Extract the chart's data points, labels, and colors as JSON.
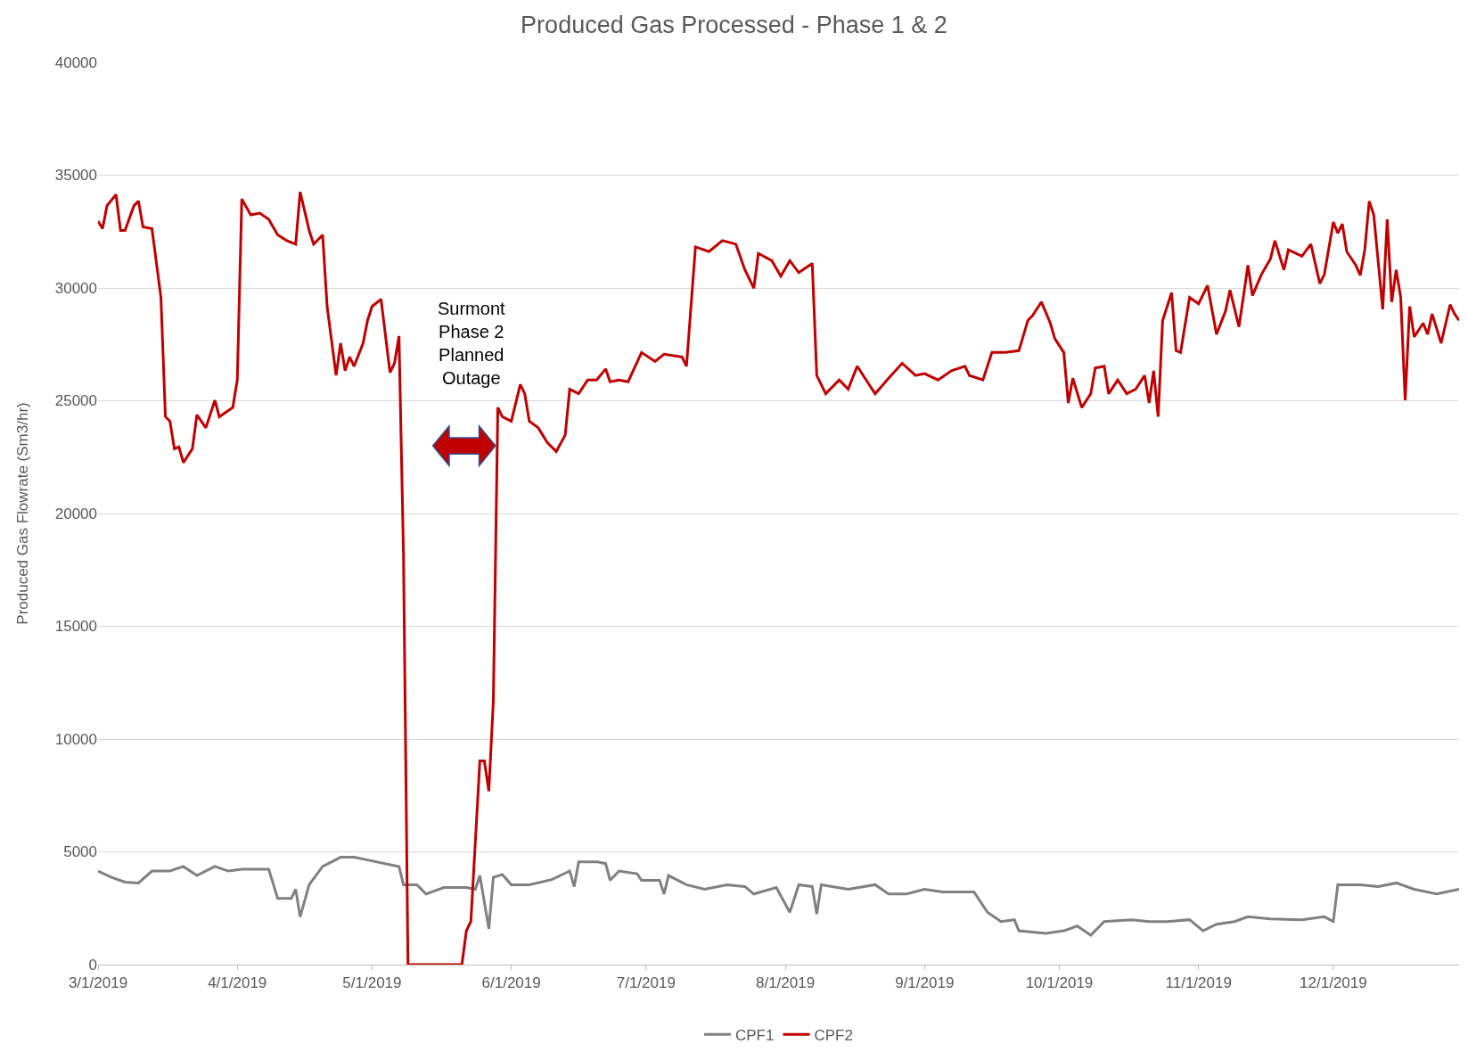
{
  "chart_data": {
    "type": "line",
    "title": "Produced Gas Processed - Phase 1 & 2",
    "ylabel": "Produced Gas Flowrate (Sm3/hr)",
    "series": [
      {
        "name": "CPF1",
        "color": "#808080",
        "x": [
          "2019-03-01",
          "2019-03-04",
          "2019-03-07",
          "2019-03-10",
          "2019-03-13",
          "2019-03-17",
          "2019-03-20",
          "2019-03-23",
          "2019-03-27",
          "2019-03-30",
          "2019-04-02",
          "2019-04-08",
          "2019-04-10",
          "2019-04-13",
          "2019-04-14",
          "2019-04-15",
          "2019-04-17",
          "2019-04-20",
          "2019-04-24",
          "2019-04-27",
          "2019-04-30",
          "2019-05-07",
          "2019-05-08",
          "2019-05-11",
          "2019-05-13",
          "2019-05-17",
          "2019-05-22",
          "2019-05-24",
          "2019-05-25",
          "2019-05-27",
          "2019-05-28",
          "2019-05-30",
          "2019-05-31",
          "2019-06-01",
          "2019-06-05",
          "2019-06-10",
          "2019-06-14",
          "2019-06-15",
          "2019-06-16",
          "2019-06-20",
          "2019-06-22",
          "2019-06-23",
          "2019-06-25",
          "2019-06-29",
          "2019-06-30",
          "2019-07-04",
          "2019-07-05",
          "2019-07-06",
          "2019-07-10",
          "2019-07-14",
          "2019-07-19",
          "2019-07-23",
          "2019-07-25",
          "2019-07-30",
          "2019-08-02",
          "2019-08-04",
          "2019-08-07",
          "2019-08-08",
          "2019-08-09",
          "2019-08-15",
          "2019-08-21",
          "2019-08-24",
          "2019-08-28",
          "2019-09-01",
          "2019-09-05",
          "2019-09-12",
          "2019-09-15",
          "2019-09-18",
          "2019-09-21",
          "2019-09-22",
          "2019-09-28",
          "2019-10-02",
          "2019-10-05",
          "2019-10-08",
          "2019-10-11",
          "2019-10-17",
          "2019-10-21",
          "2019-10-25",
          "2019-10-30",
          "2019-11-02",
          "2019-11-05",
          "2019-11-09",
          "2019-11-12",
          "2019-11-17",
          "2019-11-24",
          "2019-11-29",
          "2019-12-01",
          "2019-12-02",
          "2019-12-07",
          "2019-12-11",
          "2019-12-15",
          "2019-12-19",
          "2019-12-24",
          "2019-12-29"
        ],
        "values": [
          4150,
          3870,
          3660,
          3620,
          4150,
          4150,
          4350,
          3950,
          4350,
          4150,
          4230,
          4230,
          2930,
          2930,
          3340,
          2120,
          3540,
          4350,
          4760,
          4760,
          4640,
          4350,
          3540,
          3540,
          3130,
          3420,
          3420,
          3340,
          3950,
          1590,
          3870,
          3990,
          3770,
          3540,
          3540,
          3770,
          4150,
          3460,
          4560,
          4560,
          4480,
          3740,
          4150,
          4030,
          3740,
          3740,
          3130,
          3950,
          3540,
          3340,
          3540,
          3460,
          3130,
          3420,
          2320,
          3540,
          3460,
          2240,
          3540,
          3340,
          3540,
          3130,
          3130,
          3340,
          3220,
          3220,
          2320,
          1910,
          1990,
          1500,
          1380,
          1500,
          1710,
          1300,
          1910,
          1990,
          1910,
          1910,
          1990,
          1500,
          1790,
          1910,
          2120,
          2030,
          1990,
          2120,
          1910,
          3540,
          3540,
          3460,
          3620,
          3340,
          3130,
          3340
        ]
      },
      {
        "name": "CPF2",
        "color": "#c00000",
        "x": [
          "2019-03-01",
          "2019-03-02",
          "2019-03-03",
          "2019-03-05",
          "2019-03-06",
          "2019-03-07",
          "2019-03-09",
          "2019-03-10",
          "2019-03-11",
          "2019-03-13",
          "2019-03-15",
          "2019-03-16",
          "2019-03-17",
          "2019-03-18",
          "2019-03-19",
          "2019-03-20",
          "2019-03-22",
          "2019-03-23",
          "2019-03-25",
          "2019-03-27",
          "2019-03-28",
          "2019-03-31",
          "2019-04-01",
          "2019-04-02",
          "2019-04-04",
          "2019-04-06",
          "2019-04-08",
          "2019-04-10",
          "2019-04-12",
          "2019-04-14",
          "2019-04-15",
          "2019-04-17",
          "2019-04-18",
          "2019-04-20",
          "2019-04-21",
          "2019-04-23",
          "2019-04-24",
          "2019-04-25",
          "2019-04-26",
          "2019-04-27",
          "2019-04-29",
          "2019-04-30",
          "2019-05-01",
          "2019-05-03",
          "2019-05-05",
          "2019-05-06",
          "2019-05-07",
          "2019-05-08",
          "2019-05-09",
          "2019-05-21",
          "2019-05-22",
          "2019-05-23",
          "2019-05-25",
          "2019-05-26",
          "2019-05-27",
          "2019-05-28",
          "2019-05-29",
          "2019-05-30",
          "2019-06-01",
          "2019-06-03",
          "2019-06-04",
          "2019-06-05",
          "2019-06-07",
          "2019-06-09",
          "2019-06-11",
          "2019-06-13",
          "2019-06-14",
          "2019-06-16",
          "2019-06-18",
          "2019-06-20",
          "2019-06-22",
          "2019-06-23",
          "2019-06-25",
          "2019-06-27",
          "2019-06-30",
          "2019-07-03",
          "2019-07-05",
          "2019-07-09",
          "2019-07-10",
          "2019-07-12",
          "2019-07-15",
          "2019-07-18",
          "2019-07-21",
          "2019-07-23",
          "2019-07-25",
          "2019-07-26",
          "2019-07-29",
          "2019-07-31",
          "2019-08-02",
          "2019-08-04",
          "2019-08-07",
          "2019-08-08",
          "2019-08-10",
          "2019-08-13",
          "2019-08-15",
          "2019-08-17",
          "2019-08-19",
          "2019-08-21",
          "2019-08-24",
          "2019-08-27",
          "2019-08-30",
          "2019-09-01",
          "2019-09-04",
          "2019-09-07",
          "2019-09-10",
          "2019-09-11",
          "2019-09-14",
          "2019-09-16",
          "2019-09-19",
          "2019-09-22",
          "2019-09-24",
          "2019-09-25",
          "2019-09-27",
          "2019-09-29",
          "2019-09-30",
          "2019-10-02",
          "2019-10-03",
          "2019-10-04",
          "2019-10-06",
          "2019-10-08",
          "2019-10-09",
          "2019-10-11",
          "2019-10-12",
          "2019-10-14",
          "2019-10-16",
          "2019-10-18",
          "2019-10-20",
          "2019-10-21",
          "2019-10-22",
          "2019-10-23",
          "2019-10-24",
          "2019-10-26",
          "2019-10-27",
          "2019-10-28",
          "2019-10-30",
          "2019-11-01",
          "2019-11-03",
          "2019-11-05",
          "2019-11-07",
          "2019-11-08",
          "2019-11-10",
          "2019-11-12",
          "2019-11-13",
          "2019-11-15",
          "2019-11-17",
          "2019-11-18",
          "2019-11-20",
          "2019-11-21",
          "2019-11-24",
          "2019-11-26",
          "2019-11-28",
          "2019-11-29",
          "2019-12-01",
          "2019-12-02",
          "2019-12-03",
          "2019-12-04",
          "2019-12-06",
          "2019-12-07",
          "2019-12-08",
          "2019-12-09",
          "2019-12-10",
          "2019-12-12",
          "2019-12-13",
          "2019-12-14",
          "2019-12-15",
          "2019-12-16",
          "2019-12-17",
          "2019-12-18",
          "2019-12-19",
          "2019-12-21",
          "2019-12-22",
          "2019-12-23",
          "2019-12-25",
          "2019-12-27",
          "2019-12-28",
          "2019-12-29"
        ],
        "values": [
          32960,
          32630,
          33650,
          34140,
          32550,
          32550,
          33650,
          33850,
          32710,
          32630,
          29580,
          24290,
          24090,
          22870,
          22950,
          22260,
          22870,
          24370,
          23800,
          25020,
          24290,
          24700,
          25920,
          33940,
          33240,
          33320,
          33040,
          32350,
          32100,
          31940,
          34260,
          32550,
          31940,
          32350,
          29180,
          26120,
          27550,
          26330,
          26940,
          26530,
          27550,
          28560,
          29180,
          29500,
          26250,
          26660,
          27870,
          18190,
          0,
          0,
          1500,
          1910,
          9030,
          9030,
          7690,
          11680,
          24700,
          24290,
          24090,
          25720,
          25310,
          24090,
          23800,
          23150,
          22750,
          23480,
          25510,
          25310,
          25920,
          25920,
          26410,
          25840,
          25920,
          25840,
          27140,
          26740,
          27060,
          26940,
          26530,
          31820,
          31610,
          32100,
          31940,
          30800,
          29990,
          31530,
          31210,
          30520,
          31210,
          30680,
          31090,
          26120,
          25310,
          25920,
          25510,
          26530,
          25920,
          25310,
          26000,
          26660,
          26120,
          26200,
          25920,
          26330,
          26530,
          26120,
          25920,
          27140,
          27140,
          27220,
          28560,
          28760,
          29380,
          28440,
          27750,
          27140,
          24900,
          26000,
          24700,
          25310,
          26450,
          26530,
          25310,
          25920,
          25310,
          25510,
          26120,
          24900,
          26330,
          24290,
          28560,
          29790,
          27220,
          27140,
          29580,
          29300,
          30110,
          27950,
          28970,
          29910,
          28280,
          31010,
          29660,
          30600,
          31290,
          32100,
          30800,
          31690,
          31410,
          31940,
          30190,
          30600,
          32920,
          32430,
          32840,
          31610,
          31010,
          30560,
          31690,
          33850,
          33240,
          29050,
          33040,
          29380,
          30800,
          29580,
          25020,
          29180,
          27830,
          28440,
          27950,
          28850,
          27550,
          29260,
          28850,
          28560
        ]
      }
    ],
    "annotations": [
      "Surmont\nPhase 2\nPlanned\nOutage"
    ],
    "xlim": [
      "2019-03-01",
      "2019-12-29"
    ],
    "xticks": [
      {
        "value": "2019-03-01",
        "label": "3/1/2019"
      },
      {
        "value": "2019-04-01",
        "label": "4/1/2019"
      },
      {
        "value": "2019-05-01",
        "label": "5/1/2019"
      },
      {
        "value": "2019-06-01",
        "label": "6/1/2019"
      },
      {
        "value": "2019-07-01",
        "label": "7/1/2019"
      },
      {
        "value": "2019-08-01",
        "label": "8/1/2019"
      },
      {
        "value": "2019-09-01",
        "label": "9/1/2019"
      },
      {
        "value": "2019-10-01",
        "label": "10/1/2019"
      },
      {
        "value": "2019-11-01",
        "label": "11/1/2019"
      },
      {
        "value": "2019-12-01",
        "label": "12/1/2019"
      }
    ],
    "ylim": [
      0,
      40000
    ],
    "yticks": [
      0,
      5000,
      10000,
      15000,
      20000,
      25000,
      30000,
      35000,
      40000
    ],
    "grid": "y",
    "legend": "bottom",
    "marker": "none",
    "line_style": "solid"
  }
}
